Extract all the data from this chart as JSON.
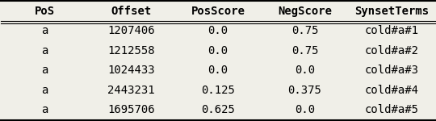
{
  "columns": [
    "PoS",
    "Offset",
    "PosScore",
    "NegScore",
    "SynsetTerms"
  ],
  "rows": [
    [
      "a",
      "1207406",
      "0.0",
      "0.75",
      "cold#a#1"
    ],
    [
      "a",
      "1212558",
      "0.0",
      "0.75",
      "cold#a#2"
    ],
    [
      "a",
      "1024433",
      "0.0",
      "0.0",
      "cold#a#3"
    ],
    [
      "a",
      "2443231",
      "0.125",
      "0.375",
      "cold#a#4"
    ],
    [
      "a",
      "1695706",
      "0.625",
      "0.0",
      "cold#a#5"
    ]
  ],
  "font_size": 10,
  "header_font_size": 10,
  "bg_color": "#f0efe8",
  "line_color": "#000000"
}
